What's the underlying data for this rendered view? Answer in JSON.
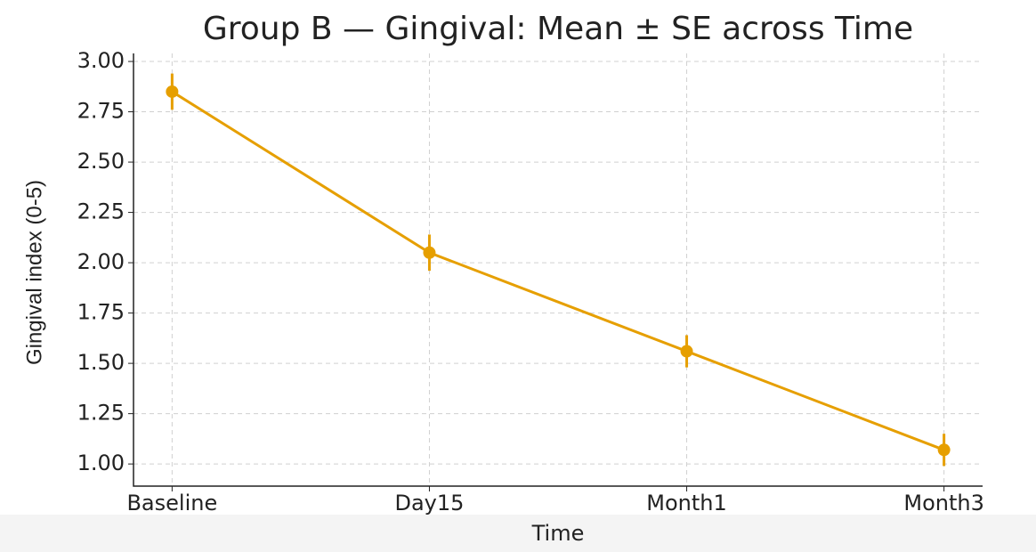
{
  "chart_data": {
    "type": "line",
    "title": "Group B — Gingival: Mean ± SE across Time",
    "xlabel": "Time",
    "ylabel": "Gingival index (0-5)",
    "categories": [
      "Baseline",
      "Day15",
      "Month1",
      "Month3"
    ],
    "series": [
      {
        "color": "#e69f00",
        "values": [
          2.85,
          2.05,
          1.56,
          1.07
        ],
        "errors": [
          0.09,
          0.09,
          0.08,
          0.08
        ]
      }
    ],
    "ylim": [
      0.89,
      3.04
    ],
    "yticks": [
      {
        "value": 1,
        "label": "1.00"
      },
      {
        "value": 1.25,
        "label": "1.25"
      },
      {
        "value": 1.5,
        "label": "1.50"
      },
      {
        "value": 1.75,
        "label": "1.75"
      },
      {
        "value": 2,
        "label": "2.00"
      },
      {
        "value": 2.25,
        "label": "2.25"
      },
      {
        "value": 2.5,
        "label": "2.50"
      },
      {
        "value": 2.75,
        "label": "2.75"
      },
      {
        "value": 3,
        "label": "3.00"
      }
    ],
    "grid": true
  }
}
